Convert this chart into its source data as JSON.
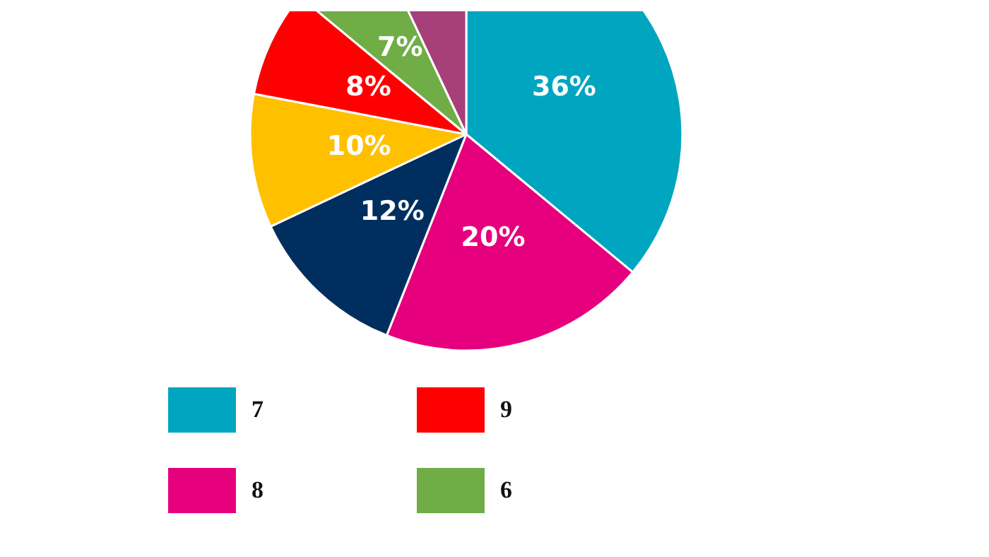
{
  "chart_data": {
    "type": "pie",
    "categories": [
      "7",
      "8",
      null,
      null,
      "9",
      "6",
      null
    ],
    "values": [
      36,
      20,
      12,
      10,
      8,
      7,
      7
    ],
    "colors": [
      "#00a5c0",
      "#e6007e",
      "#002f5f",
      "#ffc000",
      "#ff0000",
      "#70ad47",
      "#a63f7a"
    ],
    "value_labels": [
      "36%",
      "20%",
      "12%",
      "10%",
      "8%",
      "7%",
      null
    ],
    "legend": "bottom"
  }
}
